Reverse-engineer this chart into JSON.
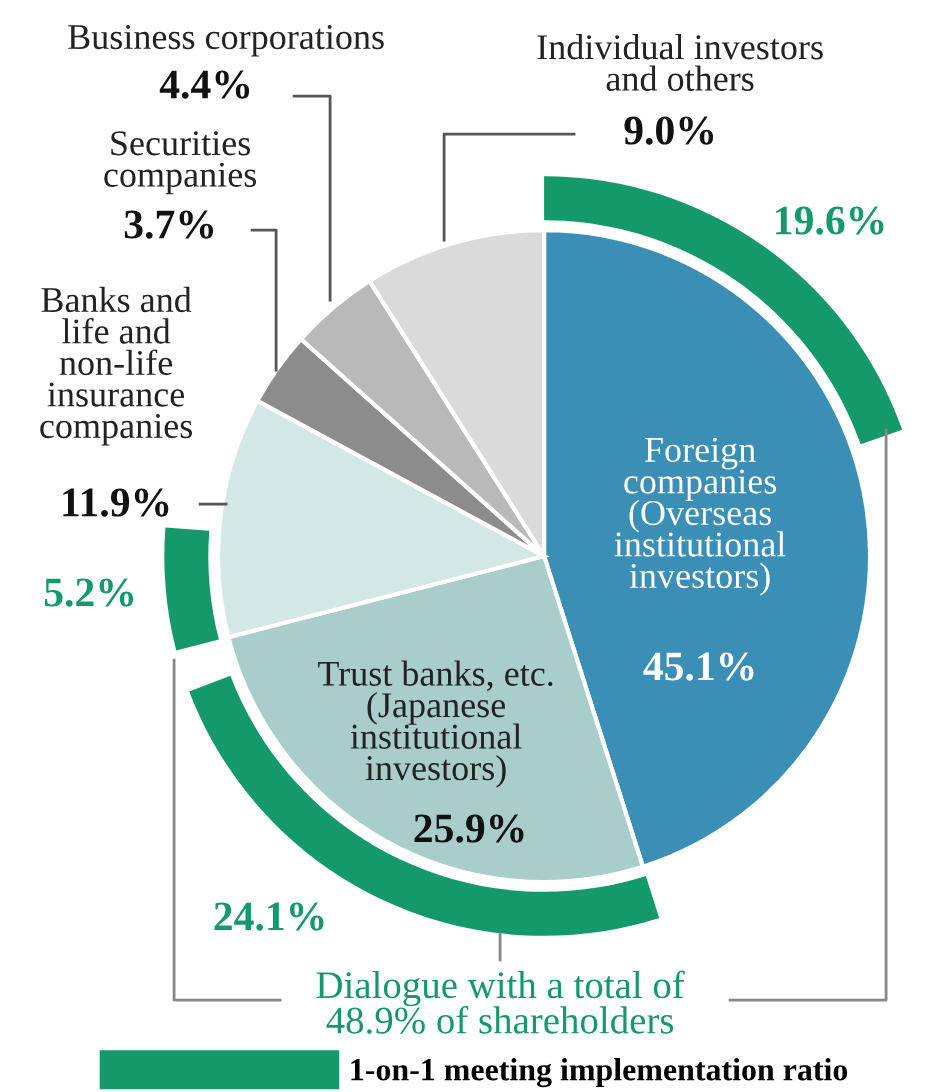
{
  "chart_data": {
    "type": "pie",
    "categories": [
      "Foreign\ncompanies\n(Overseas\ninstitutional\ninvestors)",
      "Trust banks, etc.\n(Japanese\ninstitutional\ninvestors)",
      "Banks and\nlife and\nnon-life\ninsurance\ncompanies",
      "Securities\ncompanies",
      "Business corporations",
      "Individual investors\nand others"
    ],
    "series": [
      {
        "type": "pie",
        "values": [
          45.1,
          25.9,
          11.9,
          3.7,
          4.4,
          9.0
        ],
        "colors": [
          "#3b8fb7",
          "#a8cdca",
          "#d3e7e5",
          "#8c8c8c",
          "#b9b9b9",
          "#dadada"
        ],
        "value_labels": [
          "45.1%",
          "25.9%",
          "11.9%",
          "3.7%",
          "4.4%",
          "9.0%"
        ]
      },
      {
        "type": "donut",
        "name": "1-on-1 meeting implementation ratio",
        "color": "#14996b",
        "values": [
          19.6,
          24.1,
          5.2,
          null,
          null,
          null
        ],
        "value_labels": [
          "19.6%",
          "24.1%",
          "5.2%",
          null,
          null,
          null
        ]
      }
    ],
    "legend": "bottom",
    "annotations": [
      "Dialogue with a total of\n48.9% of shareholders"
    ]
  }
}
